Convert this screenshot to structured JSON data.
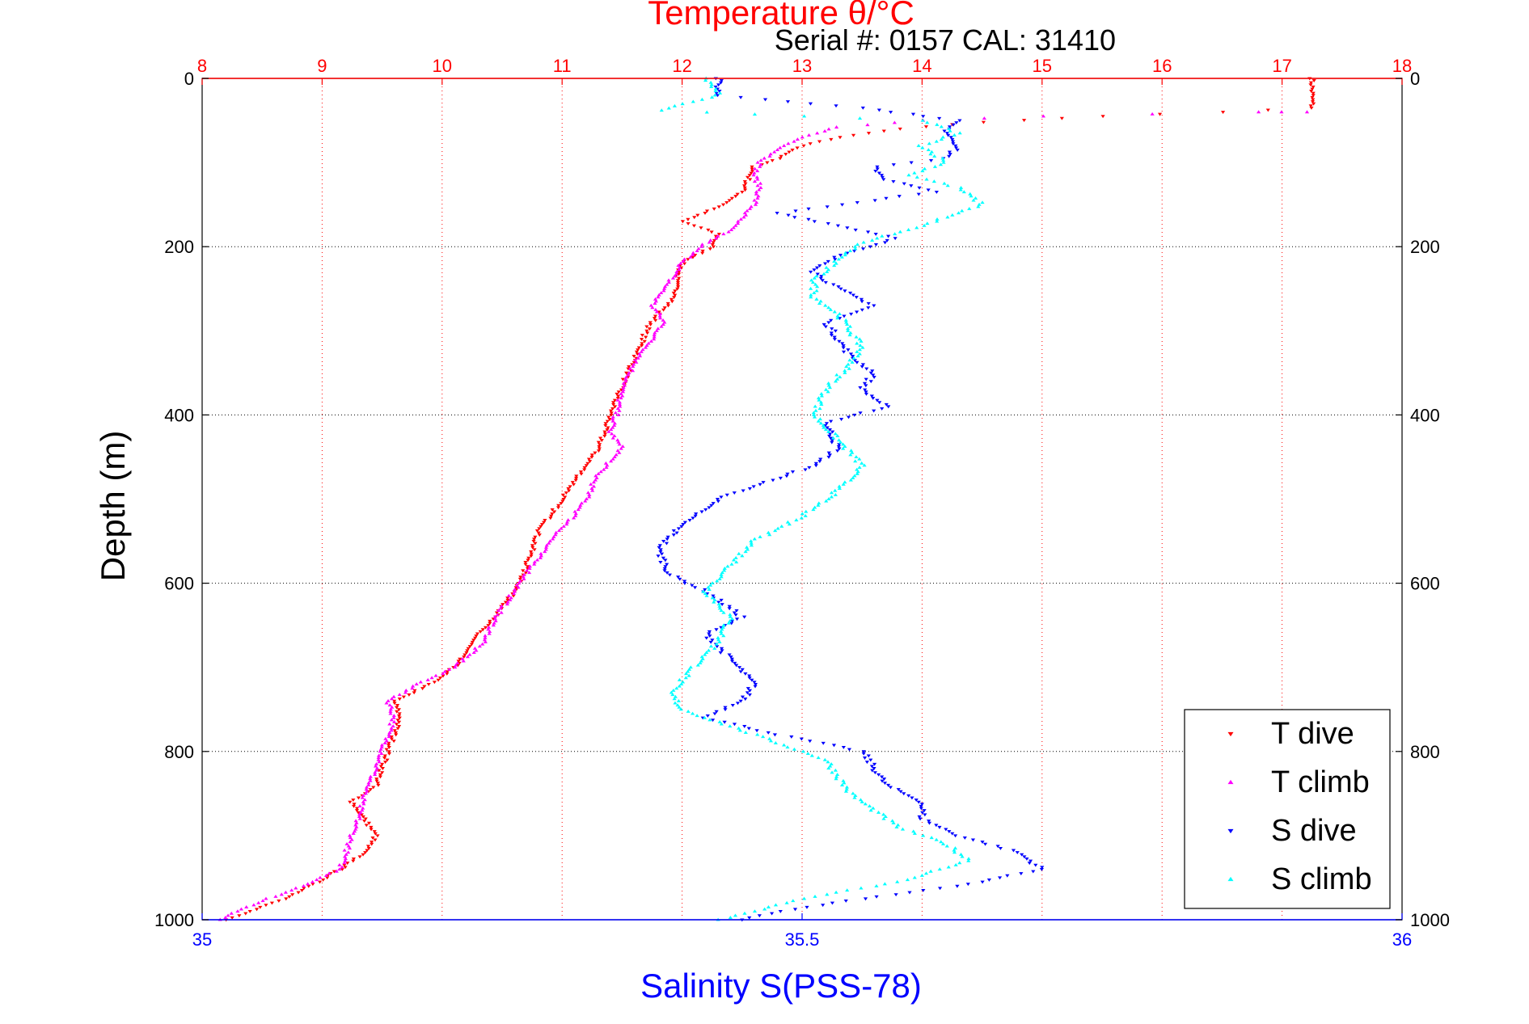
{
  "chart_data": {
    "type": "scatter",
    "title": "Temperature θ/°C",
    "subtitle": "Serial #: 0157  CAL: 31410",
    "xlabel_top": "Temperature θ/°C",
    "xlabel_bottom": "Salinity S(PSS-78)",
    "ylabel": "Depth (m)",
    "temperature_axis": {
      "range": [
        8,
        18
      ],
      "ticks": [
        "8",
        "9",
        "10",
        "11",
        "12",
        "13",
        "14",
        "15",
        "16",
        "17",
        "18"
      ],
      "grid": true,
      "grid_style": "dotted",
      "color": "#ff0000"
    },
    "salinity_axis": {
      "range": [
        35,
        36
      ],
      "ticks": [
        "35",
        "35.5",
        "36"
      ],
      "color": "#0000ff"
    },
    "depth_axis": {
      "range": [
        0,
        1000
      ],
      "reversed": true,
      "ticks": [
        "0",
        "200",
        "400",
        "600",
        "800",
        "1000"
      ],
      "grid": true,
      "grid_style": "dotted"
    },
    "legend": {
      "position": "bottom-right",
      "entries": [
        "T dive",
        "T climb",
        "S dive",
        "S climb"
      ]
    },
    "series": [
      {
        "name": "T dive",
        "axis": "temperature",
        "color": "#ff0000",
        "marker": "triangle-down",
        "points": [
          [
            17.25,
            0
          ],
          [
            17.25,
            20
          ],
          [
            17.25,
            35
          ],
          [
            16.5,
            40
          ],
          [
            15.5,
            45
          ],
          [
            14.5,
            52
          ],
          [
            13.8,
            60
          ],
          [
            13.3,
            70
          ],
          [
            13.0,
            80
          ],
          [
            12.8,
            95
          ],
          [
            12.6,
            105
          ],
          [
            12.55,
            120
          ],
          [
            12.5,
            135
          ],
          [
            12.35,
            150
          ],
          [
            12.0,
            170
          ],
          [
            12.3,
            185
          ],
          [
            12.25,
            200
          ],
          [
            12.0,
            220
          ],
          [
            11.95,
            240
          ],
          [
            11.95,
            260
          ],
          [
            11.8,
            280
          ],
          [
            11.7,
            300
          ],
          [
            11.65,
            320
          ],
          [
            11.55,
            350
          ],
          [
            11.45,
            380
          ],
          [
            11.4,
            400
          ],
          [
            11.35,
            420
          ],
          [
            11.3,
            440
          ],
          [
            11.1,
            480
          ],
          [
            10.95,
            510
          ],
          [
            10.8,
            540
          ],
          [
            10.75,
            560
          ],
          [
            10.7,
            580
          ],
          [
            10.65,
            600
          ],
          [
            10.5,
            630
          ],
          [
            10.3,
            660
          ],
          [
            10.2,
            680
          ],
          [
            10.1,
            700
          ],
          [
            9.9,
            720
          ],
          [
            9.6,
            740
          ],
          [
            9.65,
            760
          ],
          [
            9.6,
            780
          ],
          [
            9.55,
            800
          ],
          [
            9.5,
            820
          ],
          [
            9.45,
            840
          ],
          [
            9.25,
            860
          ],
          [
            9.35,
            880
          ],
          [
            9.45,
            900
          ],
          [
            9.35,
            920
          ],
          [
            9.15,
            940
          ],
          [
            8.9,
            960
          ],
          [
            8.7,
            975
          ],
          [
            8.4,
            990
          ],
          [
            8.2,
            1000
          ]
        ]
      },
      {
        "name": "T climb",
        "axis": "temperature",
        "color": "#ff00ff",
        "marker": "triangle-up",
        "points": [
          [
            17.2,
            40
          ],
          [
            16.8,
            40
          ],
          [
            15.0,
            45
          ],
          [
            14.0,
            50
          ],
          [
            13.3,
            58
          ],
          [
            13.0,
            70
          ],
          [
            12.8,
            85
          ],
          [
            12.65,
            100
          ],
          [
            12.6,
            115
          ],
          [
            12.65,
            130
          ],
          [
            12.6,
            150
          ],
          [
            12.5,
            165
          ],
          [
            12.4,
            180
          ],
          [
            12.15,
            200
          ],
          [
            12.0,
            220
          ],
          [
            11.85,
            250
          ],
          [
            11.75,
            270
          ],
          [
            11.85,
            290
          ],
          [
            11.75,
            310
          ],
          [
            11.6,
            340
          ],
          [
            11.5,
            370
          ],
          [
            11.45,
            400
          ],
          [
            11.4,
            420
          ],
          [
            11.5,
            440
          ],
          [
            11.3,
            470
          ],
          [
            11.2,
            500
          ],
          [
            11.1,
            520
          ],
          [
            10.9,
            550
          ],
          [
            10.75,
            580
          ],
          [
            10.6,
            610
          ],
          [
            10.45,
            640
          ],
          [
            10.35,
            670
          ],
          [
            10.1,
            700
          ],
          [
            9.8,
            720
          ],
          [
            9.55,
            740
          ],
          [
            9.6,
            760
          ],
          [
            9.55,
            780
          ],
          [
            9.5,
            800
          ],
          [
            9.45,
            820
          ],
          [
            9.35,
            850
          ],
          [
            9.3,
            880
          ],
          [
            9.25,
            900
          ],
          [
            9.2,
            920
          ],
          [
            9.15,
            940
          ],
          [
            8.85,
            960
          ],
          [
            8.55,
            975
          ],
          [
            8.3,
            990
          ],
          [
            8.15,
            1000
          ]
        ]
      },
      {
        "name": "S dive",
        "axis": "salinity",
        "color": "#0000ff",
        "marker": "triangle-down",
        "points": [
          [
            35.43,
            0
          ],
          [
            35.43,
            20
          ],
          [
            35.55,
            35
          ],
          [
            35.63,
            50
          ],
          [
            35.62,
            60
          ],
          [
            35.63,
            80
          ],
          [
            35.62,
            95
          ],
          [
            35.56,
            105
          ],
          [
            35.57,
            120
          ],
          [
            35.61,
            135
          ],
          [
            35.48,
            160
          ],
          [
            35.53,
            175
          ],
          [
            35.58,
            190
          ],
          [
            35.53,
            210
          ],
          [
            35.51,
            230
          ],
          [
            35.53,
            250
          ],
          [
            35.56,
            270
          ],
          [
            35.52,
            290
          ],
          [
            35.53,
            310
          ],
          [
            35.54,
            330
          ],
          [
            35.56,
            350
          ],
          [
            35.55,
            370
          ],
          [
            35.57,
            390
          ],
          [
            35.52,
            410
          ],
          [
            35.53,
            440
          ],
          [
            35.51,
            460
          ],
          [
            35.47,
            480
          ],
          [
            35.43,
            500
          ],
          [
            35.4,
            530
          ],
          [
            35.38,
            560
          ],
          [
            35.39,
            590
          ],
          [
            35.42,
            610
          ],
          [
            35.45,
            640
          ],
          [
            35.42,
            660
          ],
          [
            35.44,
            690
          ],
          [
            35.46,
            720
          ],
          [
            35.45,
            740
          ],
          [
            35.42,
            760
          ],
          [
            35.48,
            780
          ],
          [
            35.55,
            800
          ],
          [
            35.56,
            820
          ],
          [
            35.57,
            840
          ],
          [
            35.6,
            860
          ],
          [
            35.6,
            880
          ],
          [
            35.63,
            900
          ],
          [
            35.68,
            920
          ],
          [
            35.7,
            940
          ],
          [
            35.63,
            960
          ],
          [
            35.55,
            975
          ],
          [
            35.48,
            990
          ],
          [
            35.45,
            1000
          ]
        ]
      },
      {
        "name": "S climb",
        "axis": "salinity",
        "color": "#00ffff",
        "marker": "triangle-up",
        "points": [
          [
            35.42,
            0
          ],
          [
            35.43,
            20
          ],
          [
            35.38,
            38
          ],
          [
            35.5,
            45
          ],
          [
            35.6,
            50
          ],
          [
            35.63,
            65
          ],
          [
            35.6,
            80
          ],
          [
            35.62,
            100
          ],
          [
            35.59,
            115
          ],
          [
            35.63,
            130
          ],
          [
            35.65,
            150
          ],
          [
            35.6,
            175
          ],
          [
            35.55,
            195
          ],
          [
            35.53,
            215
          ],
          [
            35.51,
            240
          ],
          [
            35.51,
            260
          ],
          [
            35.53,
            280
          ],
          [
            35.54,
            300
          ],
          [
            35.55,
            320
          ],
          [
            35.54,
            340
          ],
          [
            35.52,
            370
          ],
          [
            35.51,
            400
          ],
          [
            35.53,
            430
          ],
          [
            35.55,
            460
          ],
          [
            35.53,
            490
          ],
          [
            35.5,
            520
          ],
          [
            35.46,
            550
          ],
          [
            35.44,
            580
          ],
          [
            35.42,
            610
          ],
          [
            35.44,
            640
          ],
          [
            35.43,
            670
          ],
          [
            35.41,
            700
          ],
          [
            35.39,
            730
          ],
          [
            35.4,
            750
          ],
          [
            35.44,
            770
          ],
          [
            35.48,
            790
          ],
          [
            35.52,
            810
          ],
          [
            35.53,
            830
          ],
          [
            35.54,
            850
          ],
          [
            35.56,
            870
          ],
          [
            35.58,
            890
          ],
          [
            35.62,
            910
          ],
          [
            35.64,
            930
          ],
          [
            35.58,
            955
          ],
          [
            35.5,
            975
          ],
          [
            35.46,
            990
          ],
          [
            35.43,
            1000
          ]
        ]
      }
    ]
  }
}
